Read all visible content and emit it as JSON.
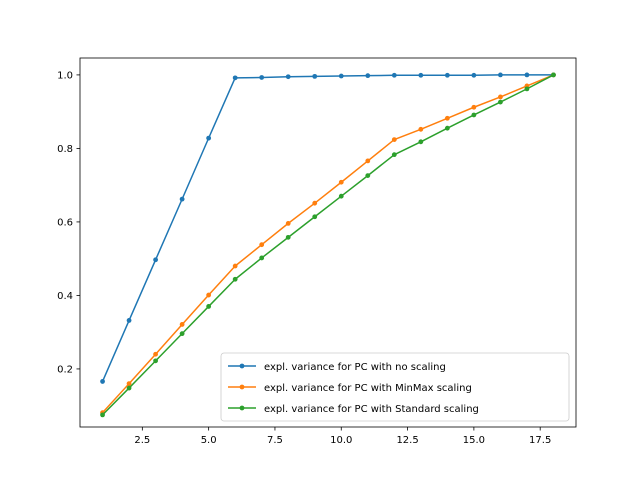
{
  "chart_data": {
    "type": "line",
    "title": "",
    "xlabel": "",
    "ylabel": "",
    "xlim": [
      0.15,
      18.85
    ],
    "ylim": [
      0.042,
      1.046
    ],
    "x_ticks": [
      2.5,
      5.0,
      7.5,
      10.0,
      12.5,
      15.0,
      17.5
    ],
    "x_tick_labels": [
      "2.5",
      "5.0",
      "7.5",
      "10.0",
      "12.5",
      "15.0",
      "17.5"
    ],
    "y_ticks": [
      0.2,
      0.4,
      0.6,
      0.8,
      1.0
    ],
    "y_tick_labels": [
      "0.2",
      "0.4",
      "0.6",
      "0.8",
      "1.0"
    ],
    "grid": false,
    "legend_position": "lower-right",
    "x": [
      1,
      2,
      3,
      4,
      5,
      6,
      7,
      8,
      9,
      10,
      11,
      12,
      13,
      14,
      15,
      16,
      17,
      18
    ],
    "series": [
      {
        "name": "expl. variance for PC with no scaling",
        "color": "#1f77b4",
        "values": [
          0.166,
          0.332,
          0.497,
          0.662,
          0.828,
          0.992,
          0.993,
          0.995,
          0.996,
          0.997,
          0.998,
          0.999,
          0.999,
          0.999,
          0.999,
          1.0,
          1.0,
          1.0
        ]
      },
      {
        "name": "expl. variance for PC with MinMax scaling",
        "color": "#ff7f0e",
        "values": [
          0.081,
          0.16,
          0.24,
          0.321,
          0.401,
          0.48,
          0.538,
          0.596,
          0.651,
          0.708,
          0.766,
          0.824,
          0.852,
          0.882,
          0.912,
          0.94,
          0.97,
          1.0
        ]
      },
      {
        "name": "expl. variance for PC with Standard scaling",
        "color": "#2ca02c",
        "values": [
          0.075,
          0.148,
          0.222,
          0.296,
          0.37,
          0.444,
          0.502,
          0.558,
          0.614,
          0.67,
          0.726,
          0.783,
          0.818,
          0.855,
          0.891,
          0.926,
          0.962,
          1.0
        ]
      }
    ]
  }
}
